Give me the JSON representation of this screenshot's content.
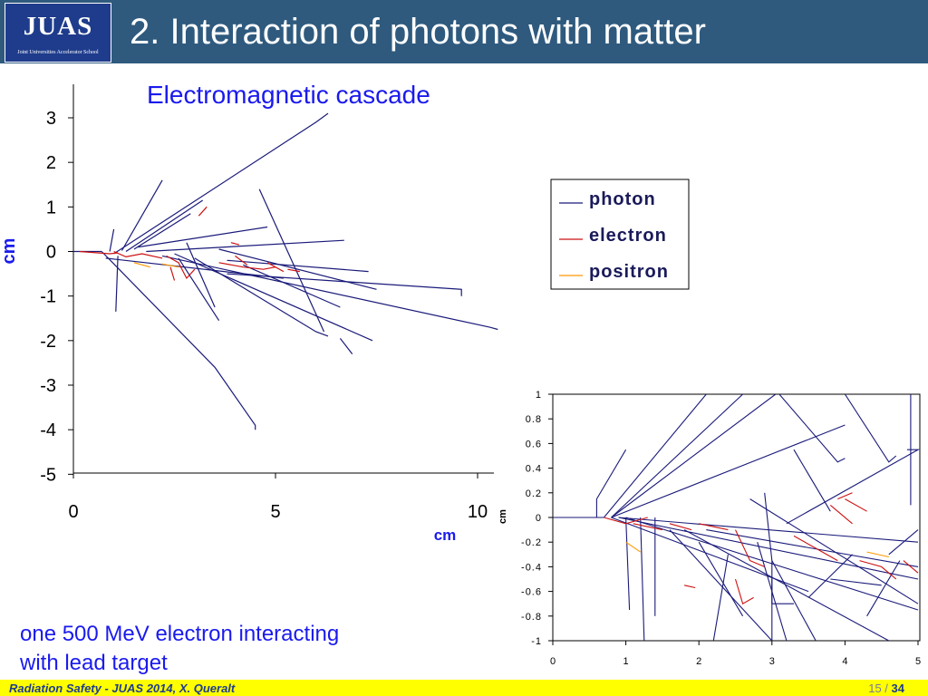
{
  "header": {
    "logo_text": "JUAS",
    "logo_subtext": "Joint Universities Accelerator School",
    "title": "2. Interaction of photons with matter"
  },
  "subtitle": "Electromagnetic cascade",
  "caption": {
    "line1": "one 500 MeV electron interacting",
    "line2": "with lead target"
  },
  "footer": {
    "left": "Radiation Safety - JUAS 2014,  X. Queralt",
    "page_current": "15",
    "page_separator": " / ",
    "page_total": "34"
  },
  "colors": {
    "header_bg": "#2f5a7e",
    "photon": "#1a1a7a",
    "electron": "#cc1111",
    "positron": "#ff9900",
    "footer_bg": "#ffff00"
  },
  "chart_data": [
    {
      "type": "line",
      "description_of_marks": "particle tracks",
      "xlabel": "cm",
      "ylabel": "cm",
      "xlim": [
        0,
        10
      ],
      "ylim": [
        -5,
        3.5
      ],
      "xticks": [
        0,
        5,
        10
      ],
      "yticks": [
        3,
        2,
        1,
        0,
        -1,
        -2,
        -3,
        -4,
        -5
      ],
      "legend": {
        "placement": "right",
        "entries": [
          "photon",
          "electron",
          "positron"
        ]
      },
      "series": [
        {
          "name": "photon",
          "tracks": [
            [
              [
                0,
                0
              ],
              [
                0.7,
                0
              ]
            ],
            [
              [
                0.7,
                0
              ],
              [
                3.5,
                -2.6
              ],
              [
                4.5,
                -3.9
              ],
              [
                4.5,
                -4.0
              ]
            ],
            [
              [
                1.0,
                -0.05
              ],
              [
                6.0,
                2.9
              ],
              [
                6.3,
                3.1
              ]
            ],
            [
              [
                1.2,
                0.02
              ],
              [
                2.2,
                1.6
              ]
            ],
            [
              [
                1.3,
                0
              ],
              [
                3.2,
                1.15
              ]
            ],
            [
              [
                0.9,
                0
              ],
              [
                1.0,
                0.5
              ]
            ],
            [
              [
                1.1,
                -0.1
              ],
              [
                1.05,
                -1.35
              ]
            ],
            [
              [
                1.5,
                0.05
              ],
              [
                2.9,
                0.85
              ]
            ],
            [
              [
                1.6,
                0.1
              ],
              [
                4.8,
                0.55
              ]
            ],
            [
              [
                1.8,
                0
              ],
              [
                6.7,
                0.25
              ]
            ],
            [
              [
                2.2,
                -0.1
              ],
              [
                10.3,
                -1.7
              ],
              [
                10.5,
                -1.75
              ]
            ],
            [
              [
                2.6,
                -0.15
              ],
              [
                3.6,
                -1.55
              ]
            ],
            [
              [
                3.0,
                -0.15
              ],
              [
                6.0,
                -1.8
              ],
              [
                6.3,
                -1.9
              ]
            ],
            [
              [
                2.8,
                0.2
              ],
              [
                3.5,
                -1.25
              ]
            ],
            [
              [
                3.6,
                0.05
              ],
              [
                7.5,
                -0.85
              ]
            ],
            [
              [
                4.6,
                1.4
              ],
              [
                6.2,
                -1.8
              ]
            ],
            [
              [
                3.8,
                -0.2
              ],
              [
                7.3,
                -0.45
              ]
            ],
            [
              [
                4.2,
                -0.3
              ],
              [
                6.6,
                -1.25
              ]
            ],
            [
              [
                3.8,
                -0.5
              ],
              [
                9.6,
                -0.85
              ],
              [
                9.6,
                -1.0
              ]
            ],
            [
              [
                2.5,
                -0.05
              ],
              [
                7.4,
                -2.0
              ]
            ],
            [
              [
                6.6,
                -1.95
              ],
              [
                6.9,
                -2.3
              ]
            ],
            [
              [
                0.8,
                -0.15
              ],
              [
                5.2,
                -0.6
              ]
            ]
          ]
        },
        {
          "name": "electron",
          "tracks": [
            [
              [
                0.15,
                0
              ],
              [
                0.9,
                -0.05
              ],
              [
                1.1,
                -0.03
              ]
            ],
            [
              [
                1.0,
                0
              ],
              [
                1.3,
                -0.12
              ],
              [
                1.7,
                -0.05
              ],
              [
                2.2,
                -0.15
              ]
            ],
            [
              [
                2.3,
                -0.1
              ],
              [
                2.6,
                -0.25
              ],
              [
                2.8,
                -0.6
              ],
              [
                3.0,
                -0.4
              ]
            ],
            [
              [
                2.4,
                -0.35
              ],
              [
                2.5,
                -0.65
              ]
            ],
            [
              [
                3.6,
                -0.25
              ],
              [
                4.2,
                -0.35
              ],
              [
                4.7,
                -0.4
              ],
              [
                5.0,
                -0.35
              ]
            ],
            [
              [
                4.0,
                -0.1
              ],
              [
                4.3,
                -0.3
              ]
            ],
            [
              [
                4.8,
                -0.25
              ],
              [
                5.2,
                -0.45
              ]
            ],
            [
              [
                5.3,
                -0.4
              ],
              [
                5.6,
                -0.45
              ]
            ],
            [
              [
                3.9,
                0.2
              ],
              [
                4.1,
                0.15
              ]
            ],
            [
              [
                3.1,
                0.8
              ],
              [
                3.3,
                1.0
              ]
            ]
          ]
        },
        {
          "name": "positron",
          "tracks": [
            [
              [
                1.5,
                -0.25
              ],
              [
                1.9,
                -0.35
              ]
            ],
            [
              [
                2.2,
                -0.28
              ],
              [
                2.6,
                -0.35
              ]
            ]
          ]
        }
      ]
    },
    {
      "type": "line",
      "description_of_marks": "particle tracks (zoomed view)",
      "xlabel": "cm",
      "ylabel": "cm",
      "xlim": [
        0,
        5
      ],
      "ylim": [
        -1,
        1
      ],
      "xticks": [
        0,
        1,
        2,
        3,
        4,
        5
      ],
      "yticks": [
        1,
        0.8,
        0.6,
        0.4,
        0.2,
        0,
        -0.2,
        -0.4,
        -0.6,
        -0.8,
        -1
      ],
      "ytick_labels": [
        "1",
        "0.8",
        "0.6",
        "0.4",
        "0.2",
        "0",
        "-0.2",
        "-0.4",
        "-0.6",
        "-0.8",
        "-1"
      ],
      "series": [
        {
          "name": "photon",
          "tracks": [
            [
              [
                0,
                0
              ],
              [
                0.7,
                0
              ]
            ],
            [
              [
                0.6,
                0
              ],
              [
                0.6,
                0.15
              ],
              [
                1.0,
                0.55
              ]
            ],
            [
              [
                0.7,
                0
              ],
              [
                2.1,
                1.0
              ]
            ],
            [
              [
                0.8,
                0
              ],
              [
                2.6,
                1.0
              ]
            ],
            [
              [
                0.8,
                0
              ],
              [
                3.05,
                1.0
              ]
            ],
            [
              [
                0.8,
                0
              ],
              [
                4.0,
                0.75
              ]
            ],
            [
              [
                0.8,
                0
              ],
              [
                3.5,
                -0.6
              ]
            ],
            [
              [
                0.9,
                0
              ],
              [
                5.0,
                -0.2
              ]
            ],
            [
              [
                0.9,
                0
              ],
              [
                5.0,
                -0.5
              ]
            ],
            [
              [
                1.0,
                0
              ],
              [
                5.0,
                -0.75
              ]
            ],
            [
              [
                1.0,
                0
              ],
              [
                1.05,
                -0.75
              ]
            ],
            [
              [
                1.2,
                0
              ],
              [
                1.25,
                -1.0
              ]
            ],
            [
              [
                1.4,
                0
              ],
              [
                1.4,
                -0.8
              ]
            ],
            [
              [
                1.6,
                -0.1
              ],
              [
                3.0,
                -1.0
              ]
            ],
            [
              [
                2.0,
                -0.2
              ],
              [
                2.6,
                -0.8
              ]
            ],
            [
              [
                1.8,
                -0.1
              ],
              [
                4.6,
                -1.0
              ]
            ],
            [
              [
                2.4,
                -0.3
              ],
              [
                2.2,
                -1.0
              ]
            ],
            [
              [
                2.8,
                -0.2
              ],
              [
                3.2,
                -1.0
              ]
            ],
            [
              [
                3.0,
                -0.35
              ],
              [
                3.6,
                -1.0
              ]
            ],
            [
              [
                3.0,
                -0.5
              ],
              [
                3.0,
                -0.7
              ],
              [
                3.3,
                -0.7
              ]
            ],
            [
              [
                2.9,
                0.2
              ],
              [
                3.0,
                -0.35
              ],
              [
                3.0,
                -1.0
              ]
            ],
            [
              [
                3.3,
                0.55
              ],
              [
                3.8,
                0.05
              ]
            ],
            [
              [
                3.1,
                1.0
              ],
              [
                3.9,
                0.45
              ],
              [
                4.0,
                0.48
              ]
            ],
            [
              [
                4.0,
                1.0
              ],
              [
                4.6,
                0.45
              ],
              [
                4.7,
                0.5
              ]
            ],
            [
              [
                4.9,
                1.0
              ],
              [
                4.9,
                0.1
              ]
            ],
            [
              [
                3.2,
                -0.05
              ],
              [
                5.0,
                0.55
              ],
              [
                4.85,
                0.55
              ]
            ],
            [
              [
                4.3,
                -0.8
              ],
              [
                4.75,
                -0.35
              ]
            ],
            [
              [
                4.6,
                -0.3
              ],
              [
                5.0,
                -0.1
              ]
            ],
            [
              [
                2.1,
                -0.1
              ],
              [
                5.0,
                -0.4
              ]
            ],
            [
              [
                3.5,
                -0.65
              ],
              [
                4.1,
                -0.3
              ]
            ],
            [
              [
                3.8,
                -0.5
              ],
              [
                4.5,
                -0.55
              ]
            ],
            [
              [
                2.7,
                0.15
              ],
              [
                5.0,
                -0.7
              ]
            ]
          ]
        },
        {
          "name": "electron",
          "tracks": [
            [
              [
                0.7,
                0
              ],
              [
                1.0,
                -0.05
              ],
              [
                1.3,
                0
              ]
            ],
            [
              [
                1.1,
                -0.05
              ],
              [
                1.5,
                -0.1
              ]
            ],
            [
              [
                1.6,
                -0.05
              ],
              [
                1.9,
                -0.1
              ]
            ],
            [
              [
                2.0,
                -0.05
              ],
              [
                2.4,
                -0.1
              ]
            ],
            [
              [
                2.5,
                -0.1
              ],
              [
                2.7,
                -0.35
              ],
              [
                2.9,
                -0.4
              ]
            ],
            [
              [
                2.5,
                -0.5
              ],
              [
                2.6,
                -0.7
              ],
              [
                2.75,
                -0.65
              ]
            ],
            [
              [
                3.3,
                -0.15
              ],
              [
                3.6,
                -0.25
              ],
              [
                3.9,
                -0.35
              ]
            ],
            [
              [
                3.8,
                0.1
              ],
              [
                4.1,
                -0.05
              ]
            ],
            [
              [
                4.0,
                0.15
              ],
              [
                4.3,
                0.05
              ]
            ],
            [
              [
                4.2,
                -0.35
              ],
              [
                4.5,
                -0.4
              ],
              [
                4.7,
                -0.5
              ]
            ],
            [
              [
                4.8,
                -0.35
              ],
              [
                5.0,
                -0.45
              ]
            ],
            [
              [
                3.9,
                0.15
              ],
              [
                4.1,
                0.2
              ]
            ],
            [
              [
                1.8,
                -0.55
              ],
              [
                1.95,
                -0.57
              ]
            ]
          ]
        },
        {
          "name": "positron",
          "tracks": [
            [
              [
                1.0,
                -0.2
              ],
              [
                1.2,
                -0.28
              ]
            ],
            [
              [
                4.3,
                -0.28
              ],
              [
                4.6,
                -0.32
              ]
            ]
          ]
        }
      ]
    }
  ]
}
